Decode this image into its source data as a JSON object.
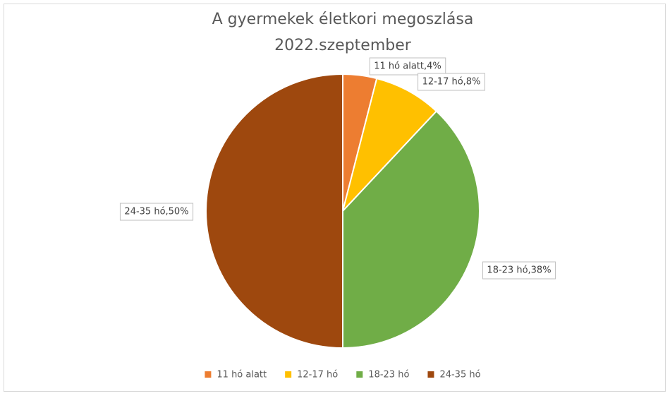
{
  "chart_data": {
    "type": "pie",
    "title": "A gyermekek életkori megoszlása",
    "subtitle": "2022.szeptember",
    "categories": [
      "11 hó alatt",
      "12-17 hó",
      "18-23 hó",
      "24-35 hó"
    ],
    "values": [
      4,
      8,
      38,
      50
    ],
    "value_labels": [
      "11 hó alatt,4%",
      "12-17 hó,8%",
      "18-23 hó,38%",
      "24-35 hó,50%"
    ],
    "colors": [
      "#ED7D31",
      "#FFC000",
      "#70AD47",
      "#9E480E"
    ],
    "legend": "bottom"
  }
}
